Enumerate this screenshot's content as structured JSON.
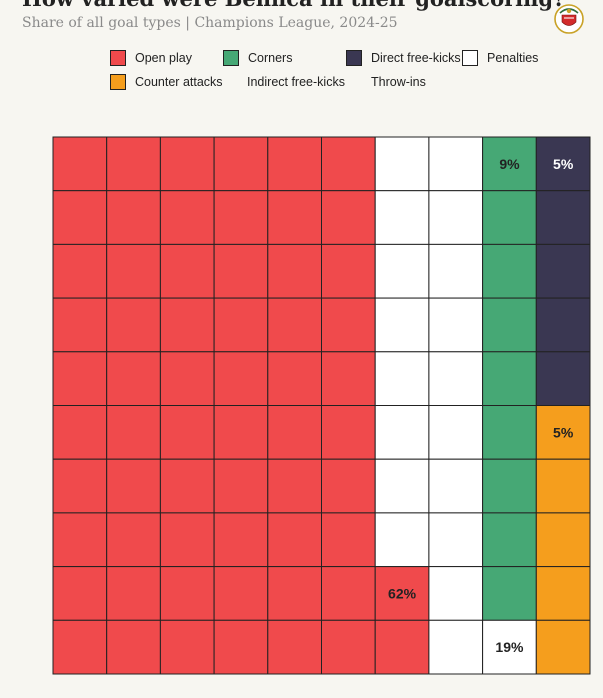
{
  "title": "How varied were Benfica in their goalscoring?",
  "subtitle": "Share of all goal types | Champions League, 2024-25",
  "logo": {
    "icon": "benfica-crest-icon"
  },
  "colors": {
    "background": "#f7f6f1",
    "grid_line": "#222222",
    "label": "#222222",
    "label_on_dark": "#ffffff"
  },
  "legend": {
    "items": [
      {
        "label": "Open play",
        "color": "#f04a4c"
      },
      {
        "label": "Corners",
        "color": "#46a875"
      },
      {
        "label": "Direct free-kicks",
        "color": "#3a3752"
      },
      {
        "label": "Penalties",
        "color": "#ffffff"
      },
      {
        "label": "Counter attacks",
        "color": "#f59e1d"
      },
      {
        "label": "Indirect free-kicks",
        "color": null
      },
      {
        "label": "Throw-ins",
        "color": null
      }
    ]
  },
  "chart_data": {
    "type": "waffle",
    "title": "How varied were Benfica in their goalscoring?",
    "subtitle": "Share of all goal types | Champions League, 2024-25",
    "units_total": 100,
    "grid": {
      "rows": 10,
      "cols": 10
    },
    "fill_order": "column-wise, left to right, bottom to top",
    "series": [
      {
        "name": "Open play",
        "value": 62,
        "label": "62%",
        "color": "#f04a4c"
      },
      {
        "name": "Penalties",
        "value": 19,
        "label": "19%",
        "color": "#ffffff"
      },
      {
        "name": "Corners",
        "value": 9,
        "label": "9%",
        "color": "#46a875"
      },
      {
        "name": "Counter attacks",
        "value": 5,
        "label": "5%",
        "color": "#f59e1d"
      },
      {
        "name": "Direct free-kicks",
        "value": 5,
        "label": "5%",
        "color": "#3a3752"
      },
      {
        "name": "Indirect free-kicks",
        "value": 0,
        "label": "",
        "color": null
      },
      {
        "name": "Throw-ins",
        "value": 0,
        "label": "",
        "color": null
      }
    ]
  }
}
